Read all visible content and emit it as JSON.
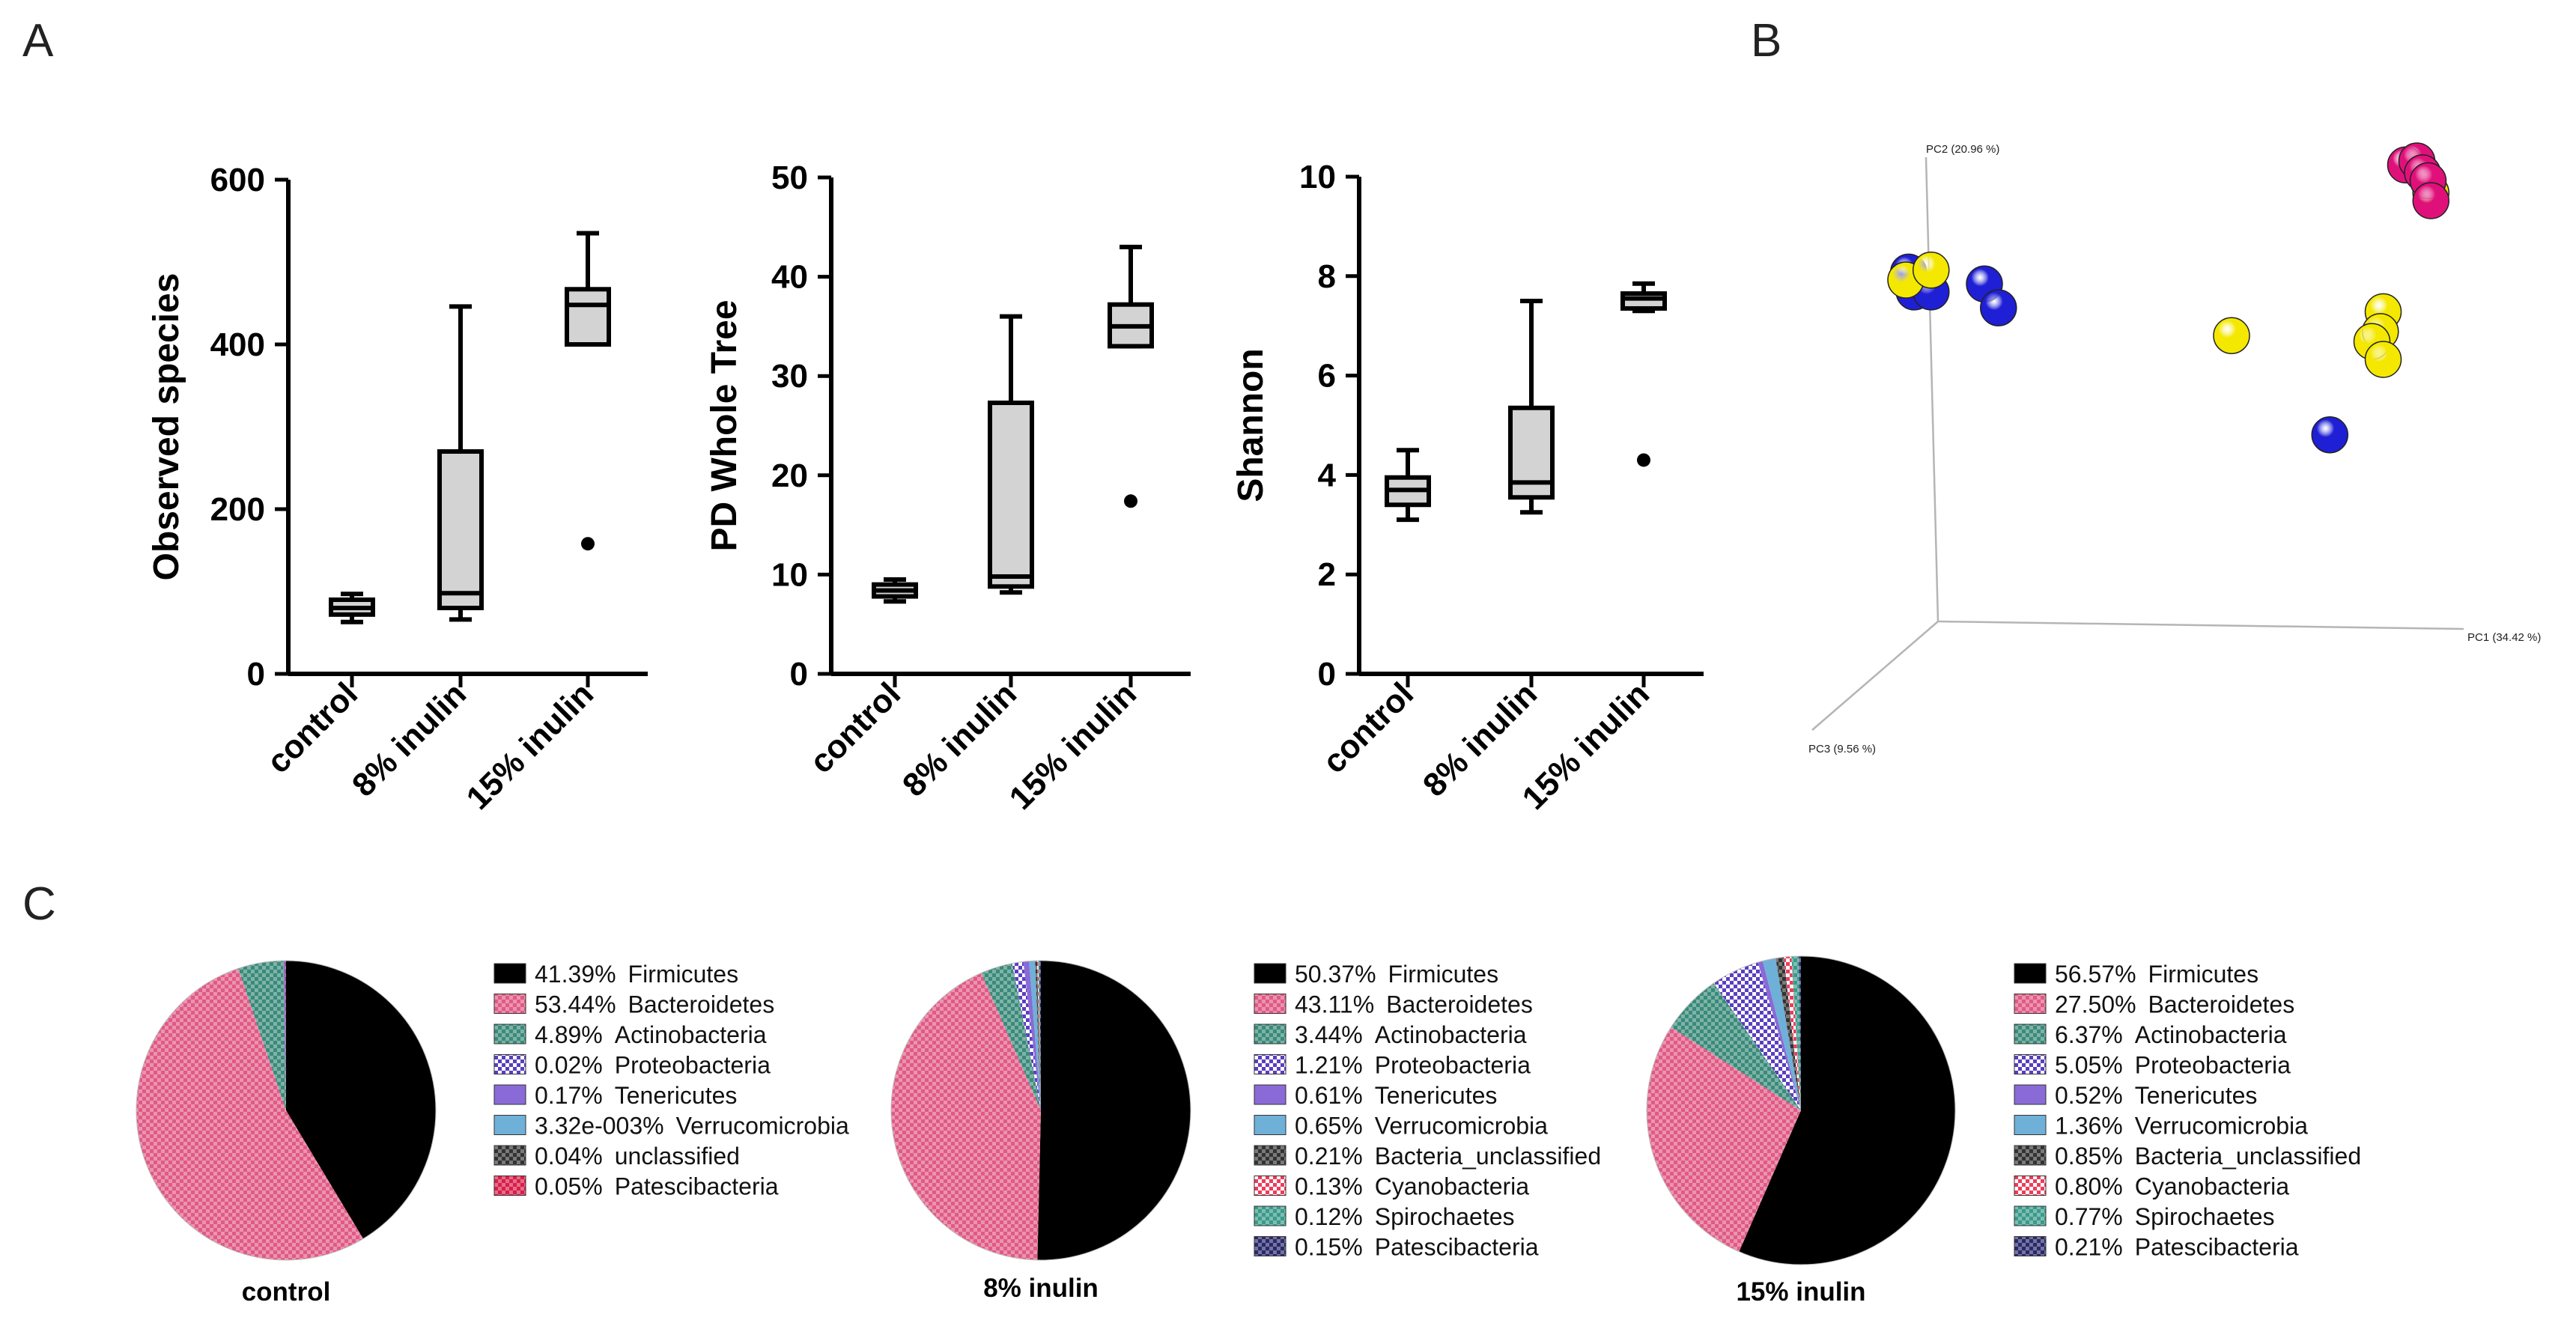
{
  "panels": {
    "a": "A",
    "b": "B",
    "c": "C"
  },
  "alpha_diversity": {
    "categories": [
      "control",
      "8% inulin",
      "15% inulin"
    ],
    "colors": {
      "box_fill": "#d3d3d3",
      "stroke": "#000000"
    },
    "charts": [
      {
        "type": "box",
        "ylabel": "Observed species",
        "ylim": [
          0,
          600
        ],
        "yticks": [
          0,
          200,
          400,
          600
        ],
        "boxes": [
          {
            "category": "control",
            "min": 63,
            "q1": 72,
            "median": 80,
            "q3": 90,
            "max": 97,
            "outliers": []
          },
          {
            "category": "8% inulin",
            "min": 66,
            "q1": 80,
            "median": 98,
            "q3": 270,
            "max": 446,
            "outliers": []
          },
          {
            "category": "15% inulin",
            "min": 400,
            "q1": 400,
            "median": 448,
            "q3": 467,
            "max": 535,
            "outliers": [
              158
            ]
          }
        ]
      },
      {
        "type": "box",
        "ylabel": "PD Whole Tree",
        "ylim": [
          0,
          50
        ],
        "yticks": [
          0,
          10,
          20,
          30,
          40,
          50
        ],
        "boxes": [
          {
            "category": "control",
            "min": 7.3,
            "q1": 7.8,
            "median": 8.4,
            "q3": 9.0,
            "max": 9.5,
            "outliers": []
          },
          {
            "category": "8% inulin",
            "min": 8.2,
            "q1": 8.8,
            "median": 9.8,
            "q3": 27.3,
            "max": 36.0,
            "outliers": []
          },
          {
            "category": "15% inulin",
            "min": 33.0,
            "q1": 33.0,
            "median": 35.0,
            "q3": 37.2,
            "max": 43.0,
            "outliers": [
              17.4
            ]
          }
        ]
      },
      {
        "type": "box",
        "ylabel": "Shannon",
        "ylim": [
          0,
          10
        ],
        "yticks": [
          0,
          2,
          4,
          6,
          8,
          10
        ],
        "boxes": [
          {
            "category": "control",
            "min": 3.1,
            "q1": 3.4,
            "median": 3.7,
            "q3": 3.95,
            "max": 4.5,
            "outliers": []
          },
          {
            "category": "8% inulin",
            "min": 3.25,
            "q1": 3.55,
            "median": 3.85,
            "q3": 5.35,
            "max": 7.5,
            "outliers": []
          },
          {
            "category": "15% inulin",
            "min": 7.3,
            "q1": 7.35,
            "median": 7.55,
            "q3": 7.65,
            "max": 7.85,
            "outliers": [
              4.3
            ]
          }
        ]
      }
    ]
  },
  "pcoa": {
    "type": "scatter",
    "x_axis_label": "PC1 (34.42 %)",
    "y_axis_label": "PC2 (20.96 %)",
    "z_axis_label": "PC3 (9.56 %)",
    "groups": [
      {
        "name": "group-blue",
        "color": "#1f1fd6"
      },
      {
        "name": "group-yellow",
        "color": "#f4e800"
      },
      {
        "name": "group-magenta",
        "color": "#e0107a"
      }
    ],
    "points": [
      {
        "group": 0,
        "pc1": 0.025,
        "pc2": 0.72
      },
      {
        "group": 0,
        "pc1": 0.035,
        "pc2": 0.67
      },
      {
        "group": 0,
        "pc1": 0.065,
        "pc2": 0.67
      },
      {
        "group": 0,
        "pc1": 0.16,
        "pc2": 0.69
      },
      {
        "group": 0,
        "pc1": 0.185,
        "pc2": 0.63
      },
      {
        "group": 0,
        "pc1": 0.775,
        "pc2": 0.31
      },
      {
        "group": 1,
        "pc1": 0.02,
        "pc2": 0.7
      },
      {
        "group": 1,
        "pc1": 0.065,
        "pc2": 0.725
      },
      {
        "group": 1,
        "pc1": 0.6,
        "pc2": 0.56
      },
      {
        "group": 1,
        "pc1": 0.87,
        "pc2": 0.62
      },
      {
        "group": 1,
        "pc1": 0.865,
        "pc2": 0.57
      },
      {
        "group": 1,
        "pc1": 0.85,
        "pc2": 0.545
      },
      {
        "group": 1,
        "pc1": 0.87,
        "pc2": 0.5
      },
      {
        "group": 1,
        "pc1": 0.955,
        "pc2": 0.92
      },
      {
        "group": 2,
        "pc1": 0.91,
        "pc2": 0.99
      },
      {
        "group": 2,
        "pc1": 0.93,
        "pc2": 1.0
      },
      {
        "group": 2,
        "pc1": 0.94,
        "pc2": 0.97
      },
      {
        "group": 2,
        "pc1": 0.95,
        "pc2": 0.95
      },
      {
        "group": 2,
        "pc1": 0.955,
        "pc2": 0.9
      }
    ]
  },
  "composition": {
    "charts": [
      {
        "type": "pie",
        "title": "control",
        "slices": [
          {
            "pct_label": "41.39%",
            "name": "Firmicutes",
            "value": 41.39,
            "color": "#000000",
            "pattern": "solid"
          },
          {
            "pct_label": "53.44%",
            "name": "Bacteroidetes",
            "value": 53.44,
            "color": "#e05a86",
            "pattern": "check"
          },
          {
            "pct_label": "4.89%",
            "name": "Actinobacteria",
            "value": 4.89,
            "color": "#3a8a7a",
            "pattern": "check"
          },
          {
            "pct_label": "0.02%",
            "name": "Proteobacteria",
            "value": 0.02,
            "color": "#5a3fbf",
            "pattern": "check-light"
          },
          {
            "pct_label": "0.17%",
            "name": "Tenericutes",
            "value": 0.17,
            "color": "#8a6ad6",
            "pattern": "solid"
          },
          {
            "pct_label": "3.32e-003%",
            "name": "Verrucomicrobia",
            "value": 0.00332,
            "color": "#6fb0d8",
            "pattern": "solid"
          },
          {
            "pct_label": "0.04%",
            "name": "unclassified",
            "value": 0.04,
            "color": "#333333",
            "pattern": "check"
          },
          {
            "pct_label": "0.05%",
            "name": "Patescibacteria",
            "value": 0.05,
            "color": "#d81e4a",
            "pattern": "check"
          }
        ]
      },
      {
        "type": "pie",
        "title": "8% inulin",
        "slices": [
          {
            "pct_label": "50.37%",
            "name": "Firmicutes",
            "value": 50.37,
            "color": "#000000",
            "pattern": "solid"
          },
          {
            "pct_label": "43.11%",
            "name": "Bacteroidetes",
            "value": 43.11,
            "color": "#e05a86",
            "pattern": "check"
          },
          {
            "pct_label": "3.44%",
            "name": "Actinobacteria",
            "value": 3.44,
            "color": "#3a8a7a",
            "pattern": "check"
          },
          {
            "pct_label": "1.21%",
            "name": "Proteobacteria",
            "value": 1.21,
            "color": "#5a3fbf",
            "pattern": "check-light"
          },
          {
            "pct_label": "0.61%",
            "name": "Tenericutes",
            "value": 0.61,
            "color": "#8a6ad6",
            "pattern": "solid"
          },
          {
            "pct_label": "0.65%",
            "name": "Verrucomicrobia",
            "value": 0.65,
            "color": "#6fb0d8",
            "pattern": "solid"
          },
          {
            "pct_label": "0.21%",
            "name": "Bacteria_unclassified",
            "value": 0.21,
            "color": "#333333",
            "pattern": "check"
          },
          {
            "pct_label": "0.13%",
            "name": "Cyanobacteria",
            "value": 0.13,
            "color": "#ef3b5a",
            "pattern": "check-light"
          },
          {
            "pct_label": "0.12%",
            "name": "Spirochaetes",
            "value": 0.12,
            "color": "#3a9a8a",
            "pattern": "check"
          },
          {
            "pct_label": "0.15%",
            "name": "Patescibacteria",
            "value": 0.15,
            "color": "#2a2a6a",
            "pattern": "check"
          }
        ]
      },
      {
        "type": "pie",
        "title": "15% inulin",
        "slices": [
          {
            "pct_label": "56.57%",
            "name": "Firmicutes",
            "value": 56.57,
            "color": "#000000",
            "pattern": "solid"
          },
          {
            "pct_label": "27.50%",
            "name": "Bacteroidetes",
            "value": 27.5,
            "color": "#e05a86",
            "pattern": "check"
          },
          {
            "pct_label": "6.37%",
            "name": "Actinobacteria",
            "value": 6.37,
            "color": "#3a8a7a",
            "pattern": "check"
          },
          {
            "pct_label": "5.05%",
            "name": "Proteobacteria",
            "value": 5.05,
            "color": "#5a3fbf",
            "pattern": "check-light"
          },
          {
            "pct_label": "0.52%",
            "name": "Tenericutes",
            "value": 0.52,
            "color": "#8a6ad6",
            "pattern": "solid"
          },
          {
            "pct_label": "1.36%",
            "name": "Verrucomicrobia",
            "value": 1.36,
            "color": "#6fb0d8",
            "pattern": "solid"
          },
          {
            "pct_label": "0.85%",
            "name": "Bacteria_unclassified",
            "value": 0.85,
            "color": "#333333",
            "pattern": "check"
          },
          {
            "pct_label": "0.80%",
            "name": "Cyanobacteria",
            "value": 0.8,
            "color": "#ef3b5a",
            "pattern": "check-light"
          },
          {
            "pct_label": "0.77%",
            "name": "Spirochaetes",
            "value": 0.77,
            "color": "#3a9a8a",
            "pattern": "check"
          },
          {
            "pct_label": "0.21%",
            "name": "Patescibacteria",
            "value": 0.21,
            "color": "#2a2a6a",
            "pattern": "check"
          }
        ]
      }
    ]
  }
}
